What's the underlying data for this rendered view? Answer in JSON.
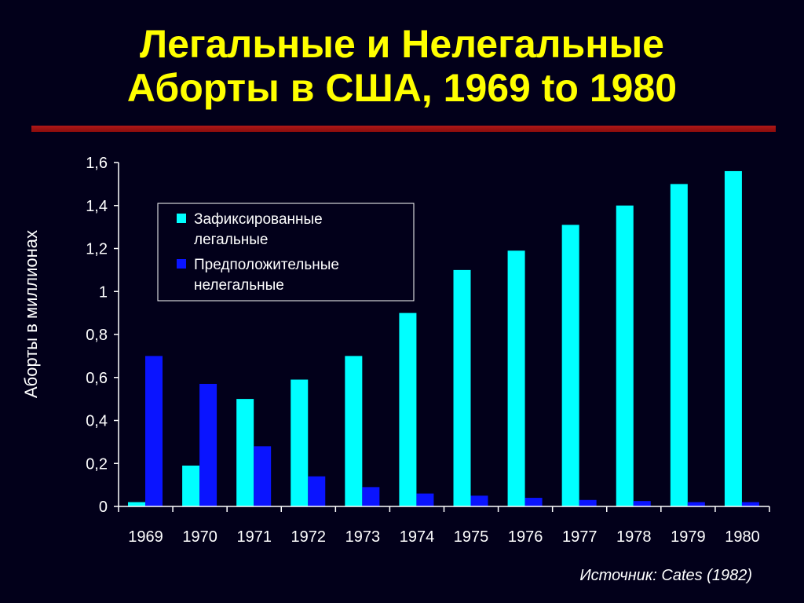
{
  "title": {
    "line1": "Легальные и Нелегальные",
    "line2": "Аборты в США, 1969 to 1980"
  },
  "source": "Источник:  Cates (1982)",
  "colors": {
    "background": "#02001a",
    "title": "#ffff00",
    "rule": "#a01414",
    "legal": "#00ffff",
    "illegal": "#0a14ff"
  },
  "chart_data": {
    "type": "bar",
    "ylabel": "Аборты в миллионах",
    "xlabel": "",
    "ylim": [
      0,
      1.6
    ],
    "yticks": [
      "0",
      "0,2",
      "0,4",
      "0,6",
      "0,8",
      "1",
      "1,2",
      "1,4",
      "1,6"
    ],
    "categories": [
      "1969",
      "1970",
      "1971",
      "1972",
      "1973",
      "1974",
      "1975",
      "1976",
      "1977",
      "1978",
      "1979",
      "1980"
    ],
    "series": [
      {
        "name": "Зафиксированные легальные",
        "legend_lines": [
          "Зафиксированные",
          "легальные"
        ],
        "color": "#00ffff",
        "values": [
          0.02,
          0.19,
          0.5,
          0.59,
          0.7,
          0.9,
          1.1,
          1.19,
          1.31,
          1.4,
          1.5,
          1.56
        ]
      },
      {
        "name": "Предположительные нелегальные",
        "legend_lines": [
          "Предположительные",
          "нелегальные"
        ],
        "color": "#0a14ff",
        "values": [
          0.7,
          0.57,
          0.28,
          0.14,
          0.09,
          0.06,
          0.05,
          0.04,
          0.03,
          0.025,
          0.02,
          0.02
        ]
      }
    ],
    "legend_position": "top-left",
    "grid": false
  }
}
